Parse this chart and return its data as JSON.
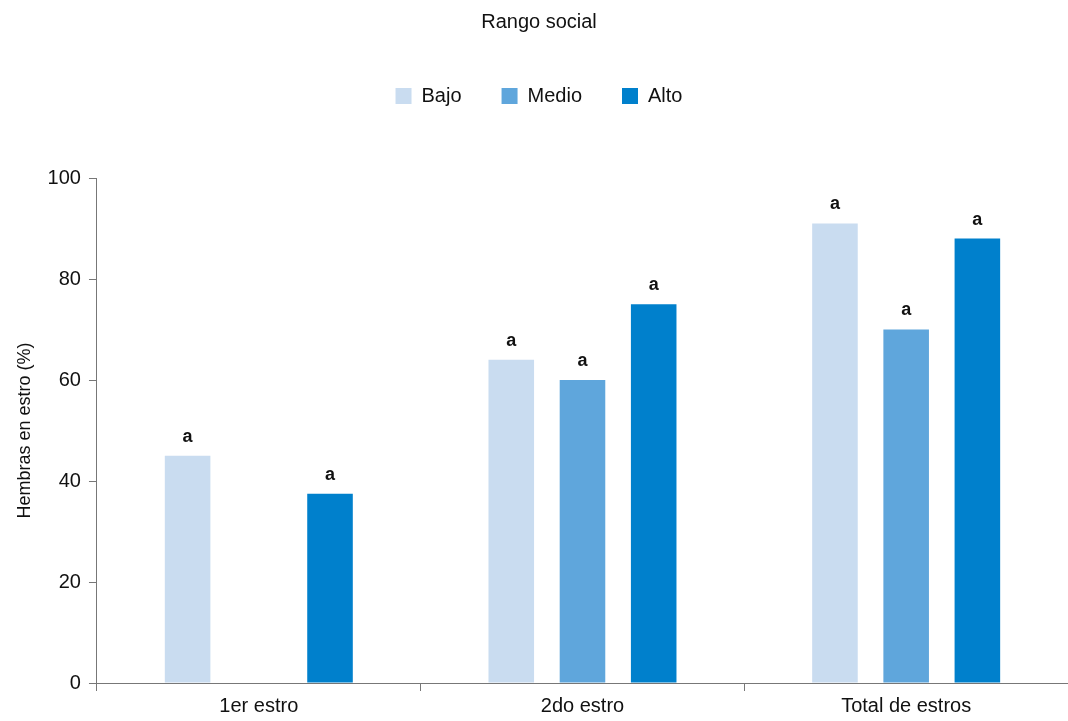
{
  "chart_data": {
    "type": "bar",
    "legend_title": "Rango social",
    "ylabel": "Hembras en estro (%)",
    "categories": [
      "1er estro",
      "2do estro",
      "Total de estros"
    ],
    "series": [
      {
        "name": "Bajo",
        "color": "#c9dcf0",
        "values": [
          45,
          64,
          91
        ],
        "value_labels": [
          "a",
          "a",
          "a"
        ]
      },
      {
        "name": "Medio",
        "color": "#5fa6dc",
        "values": [
          null,
          60,
          70
        ],
        "value_labels": [
          null,
          "a",
          "a"
        ]
      },
      {
        "name": "Alto",
        "color": "#0080cc",
        "values": [
          37.5,
          75,
          88
        ],
        "value_labels": [
          "a",
          "a",
          "a"
        ]
      }
    ],
    "ylim": [
      0,
      100
    ],
    "yticks": [
      0,
      20,
      40,
      60,
      80,
      100
    ],
    "grid": false,
    "legend": "top"
  }
}
